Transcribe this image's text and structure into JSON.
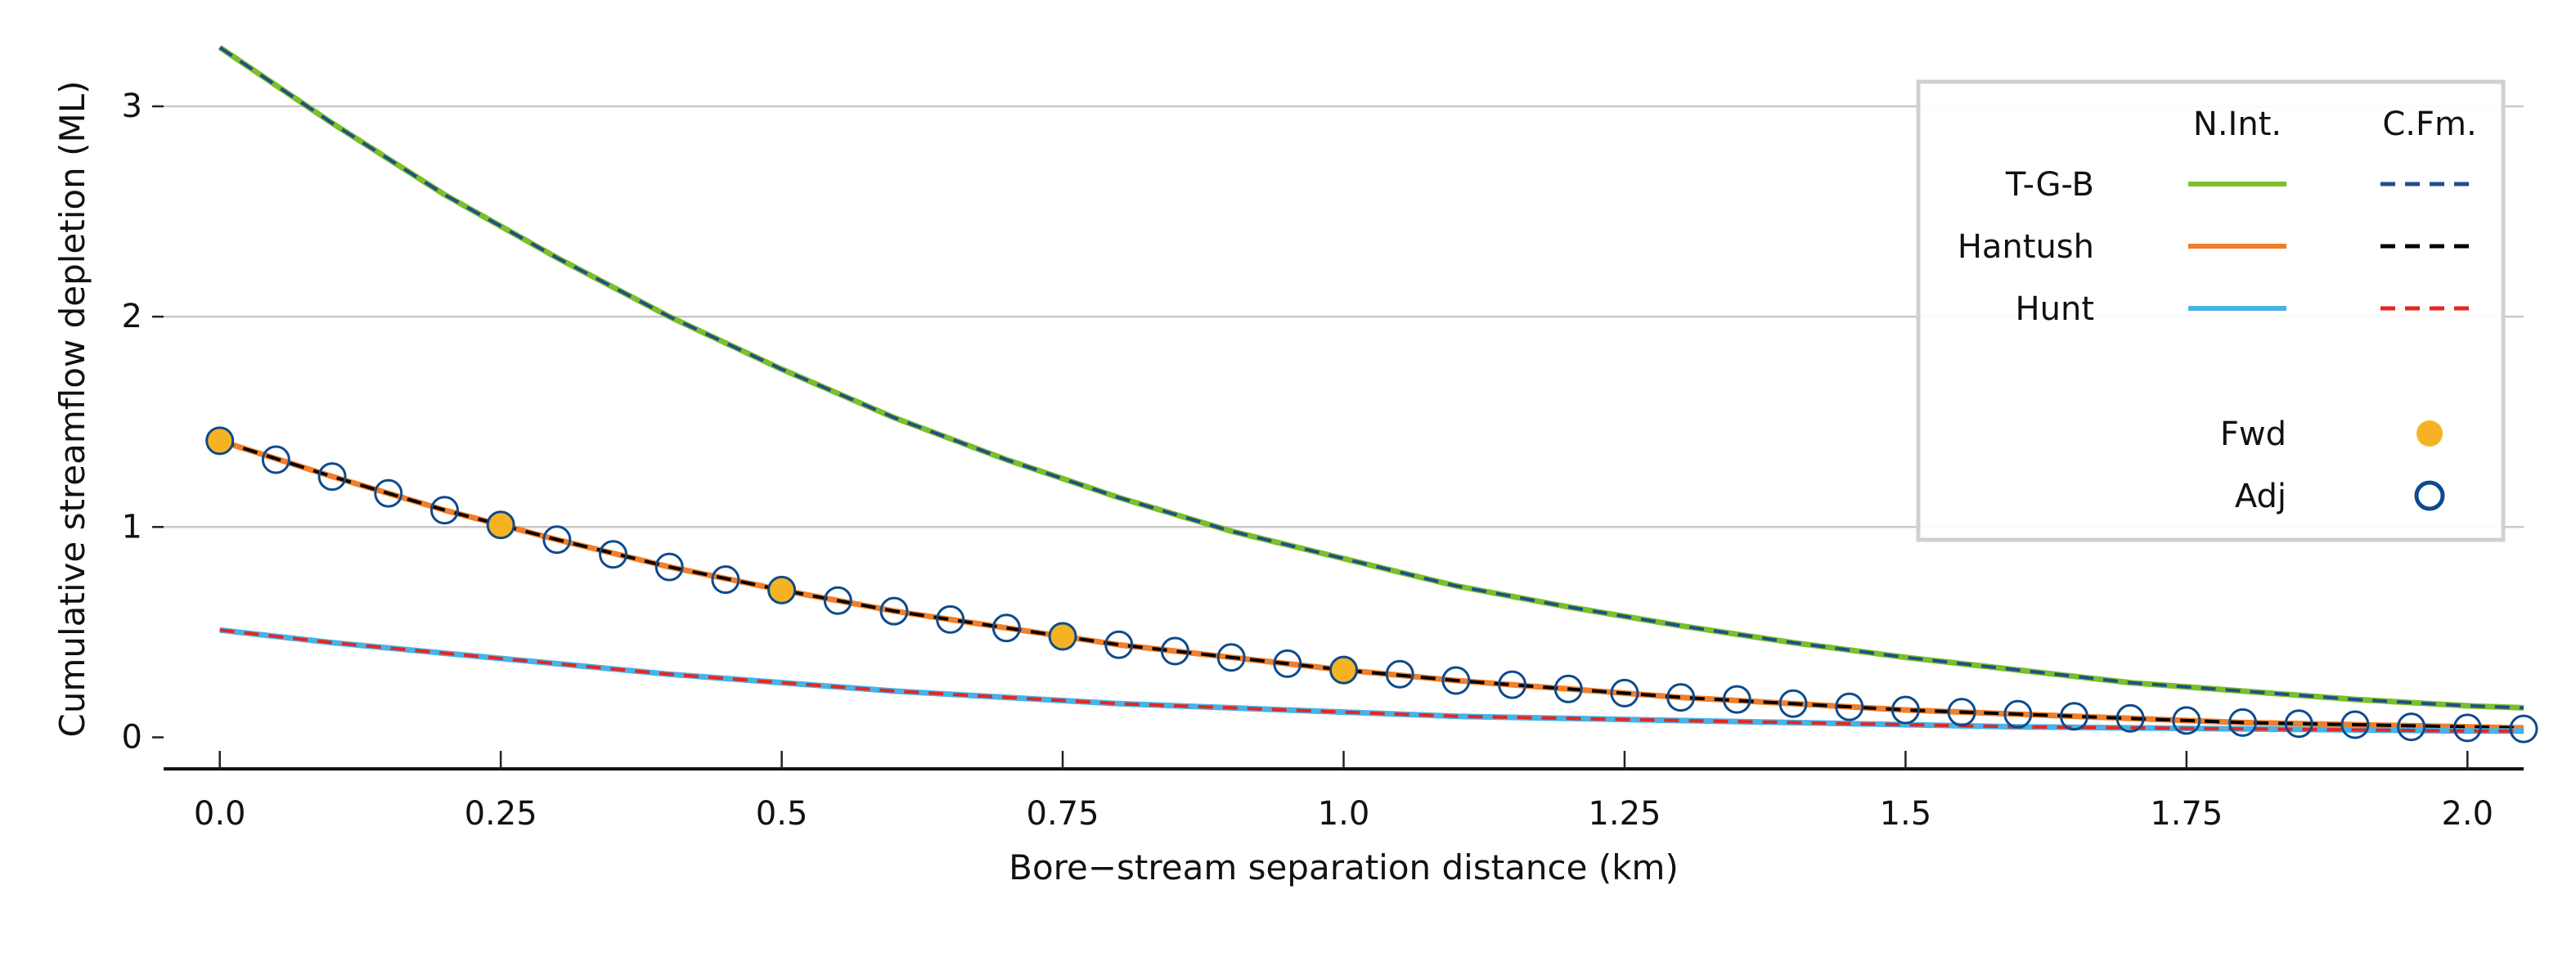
{
  "chart_data": {
    "type": "line",
    "title": "",
    "xlabel": "Bore−stream separation distance (km)",
    "ylabel": "Cumulative streamflow depletion (ML)",
    "xlim": [
      -0.05,
      2.05
    ],
    "ylim": [
      -0.15,
      3.35
    ],
    "x_ticks": [
      0.0,
      0.25,
      0.5,
      0.75,
      1.0,
      1.25,
      1.5,
      1.75,
      2.0
    ],
    "x_tick_labels": [
      "0.0",
      "0.25",
      "0.5",
      "0.75",
      "1.0",
      "1.25",
      "1.5",
      "1.75",
      "2.0"
    ],
    "y_ticks": [
      0,
      1,
      2,
      3
    ],
    "y_tick_labels": [
      "0",
      "1",
      "2",
      "3"
    ],
    "grid": "horizontal",
    "legend": {
      "placement": "top-right",
      "col_headers": [
        "N.Int.",
        "C.Fm."
      ],
      "rows": [
        {
          "label": "T-G-B",
          "nint_color": "#7cbf2a",
          "cfm_color": "#1f4e8c"
        },
        {
          "label": "Hantush",
          "nint_color": "#f07f2c",
          "cfm_color": "#000000"
        },
        {
          "label": "Hunt",
          "nint_color": "#47b3e6",
          "cfm_color": "#e8251f"
        }
      ],
      "markers": [
        {
          "label": "Fwd",
          "style": "filled-circle",
          "color": "#f5b324"
        },
        {
          "label": "Adj",
          "style": "open-circle",
          "color": "#0d4a8c"
        }
      ]
    },
    "series": [
      {
        "name": "T-G-B",
        "color_nint": "#7cbf2a",
        "color_cfm": "#1f4e8c",
        "x": [
          0.0,
          0.1,
          0.2,
          0.3,
          0.4,
          0.5,
          0.6,
          0.7,
          0.8,
          0.9,
          1.0,
          1.1,
          1.2,
          1.3,
          1.4,
          1.5,
          1.6,
          1.7,
          1.8,
          1.9,
          2.0,
          2.05
        ],
        "y": [
          3.28,
          2.92,
          2.58,
          2.28,
          2.0,
          1.75,
          1.52,
          1.32,
          1.14,
          0.98,
          0.85,
          0.72,
          0.62,
          0.53,
          0.45,
          0.38,
          0.32,
          0.26,
          0.22,
          0.18,
          0.15,
          0.14
        ]
      },
      {
        "name": "Hantush",
        "color_nint": "#f07f2c",
        "color_cfm": "#000000",
        "x": [
          0.0,
          0.1,
          0.2,
          0.3,
          0.4,
          0.5,
          0.6,
          0.7,
          0.8,
          0.9,
          1.0,
          1.1,
          1.2,
          1.3,
          1.4,
          1.5,
          1.6,
          1.7,
          1.8,
          1.9,
          2.0,
          2.05
        ],
        "y": [
          1.41,
          1.24,
          1.08,
          0.94,
          0.81,
          0.7,
          0.6,
          0.52,
          0.44,
          0.38,
          0.32,
          0.27,
          0.23,
          0.19,
          0.16,
          0.13,
          0.11,
          0.09,
          0.07,
          0.06,
          0.05,
          0.045
        ]
      },
      {
        "name": "Hunt",
        "color_nint": "#47b3e6",
        "color_cfm": "#e8251f",
        "x": [
          0.0,
          0.1,
          0.2,
          0.3,
          0.4,
          0.5,
          0.6,
          0.7,
          0.8,
          0.9,
          1.0,
          1.1,
          1.2,
          1.3,
          1.4,
          1.5,
          1.6,
          1.7,
          1.8,
          1.9,
          2.0,
          2.05
        ],
        "y": [
          0.51,
          0.45,
          0.4,
          0.35,
          0.3,
          0.26,
          0.22,
          0.19,
          0.16,
          0.14,
          0.12,
          0.1,
          0.09,
          0.08,
          0.07,
          0.06,
          0.05,
          0.045,
          0.04,
          0.035,
          0.03,
          0.03
        ]
      }
    ],
    "markers": {
      "fwd": {
        "color": "#f5b324",
        "x": [
          0.0,
          0.25,
          0.5,
          0.75,
          1.0
        ],
        "y": [
          1.41,
          1.01,
          0.7,
          0.48,
          0.32
        ]
      },
      "adj": {
        "color": "#0d4a8c",
        "x": [
          0.0,
          0.05,
          0.1,
          0.15,
          0.2,
          0.25,
          0.3,
          0.35,
          0.4,
          0.45,
          0.5,
          0.55,
          0.6,
          0.65,
          0.7,
          0.75,
          0.8,
          0.85,
          0.9,
          0.95,
          1.0,
          1.05,
          1.1,
          1.15,
          1.2,
          1.25,
          1.3,
          1.35,
          1.4,
          1.45,
          1.5,
          1.55,
          1.6,
          1.65,
          1.7,
          1.75,
          1.8,
          1.85,
          1.9,
          1.95,
          2.0,
          2.05
        ],
        "y": [
          1.41,
          1.32,
          1.24,
          1.16,
          1.08,
          1.01,
          0.94,
          0.87,
          0.81,
          0.75,
          0.7,
          0.65,
          0.6,
          0.56,
          0.52,
          0.48,
          0.44,
          0.41,
          0.38,
          0.35,
          0.32,
          0.3,
          0.27,
          0.25,
          0.23,
          0.21,
          0.19,
          0.18,
          0.16,
          0.145,
          0.13,
          0.12,
          0.11,
          0.1,
          0.09,
          0.08,
          0.07,
          0.065,
          0.06,
          0.05,
          0.045,
          0.04
        ]
      }
    }
  }
}
